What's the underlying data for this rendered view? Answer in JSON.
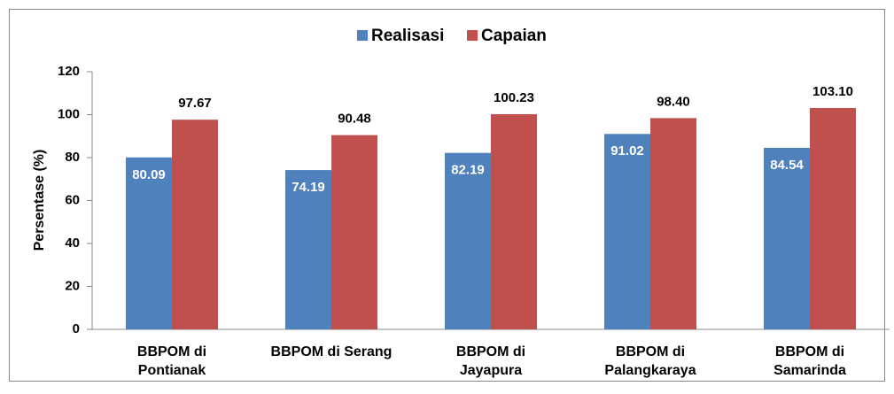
{
  "chart_data": {
    "type": "bar",
    "categories": [
      [
        "BBPOM di",
        "Pontianak"
      ],
      [
        "BBPOM di Serang"
      ],
      [
        "BBPOM di",
        "Jayapura"
      ],
      [
        "BBPOM di",
        "Palangkaraya"
      ],
      [
        "BBPOM di",
        "Samarinda"
      ]
    ],
    "series": [
      {
        "name": "Realisasi",
        "color": "#4f81bd",
        "values": [
          80.09,
          74.19,
          82.19,
          91.02,
          84.54
        ],
        "value_labels": [
          "80.09",
          "74.19",
          "82.19",
          "91.02",
          "84.54"
        ]
      },
      {
        "name": "Capaian",
        "color": "#c0504d",
        "values": [
          97.67,
          90.48,
          100.23,
          98.4,
          103.1
        ],
        "value_labels": [
          "97.67",
          "90.48",
          "100.23",
          "98.40",
          "103.10"
        ]
      }
    ],
    "y_label": "Persentase (%)",
    "ylim": [
      0,
      120
    ],
    "yticks": [
      0,
      20,
      40,
      60,
      80,
      100,
      120
    ],
    "legend": "top"
  }
}
